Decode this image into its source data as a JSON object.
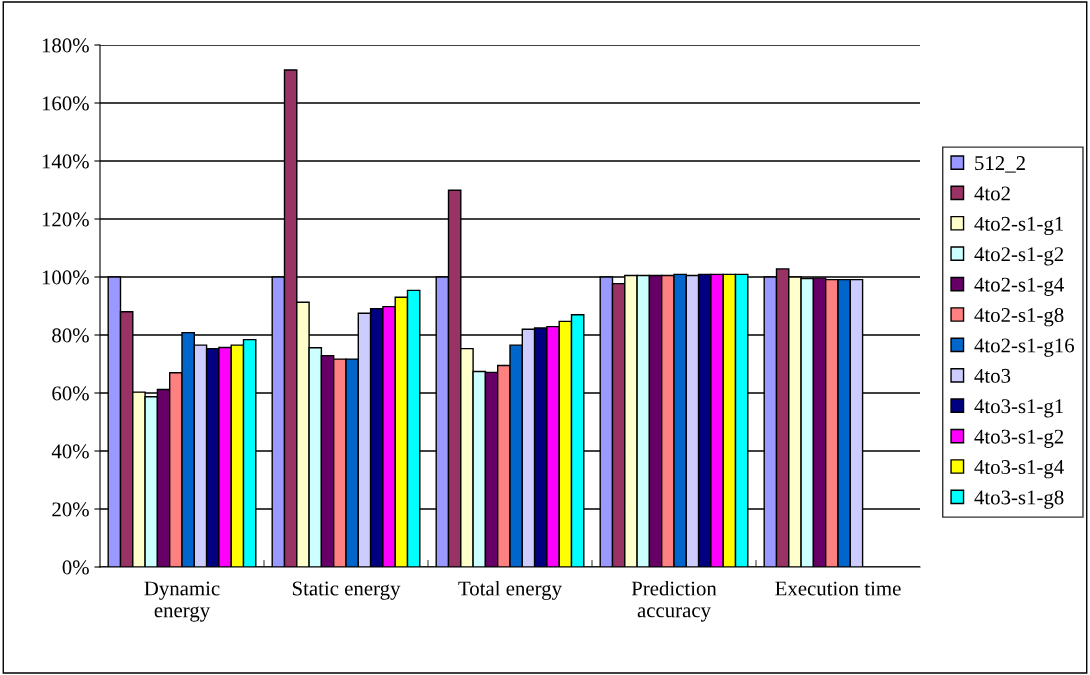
{
  "chart_data": {
    "type": "bar",
    "categories": [
      "Dynamic\nenergy",
      "Static energy",
      "Total energy",
      "Prediction\naccuracy",
      "Execution time"
    ],
    "series": [
      {
        "name": "512_2",
        "color": "#9999ff",
        "values": [
          100,
          100,
          100,
          100,
          100
        ]
      },
      {
        "name": "4to2",
        "color": "#993366",
        "values": [
          88,
          171.4,
          129.9,
          97.7,
          102.8
        ]
      },
      {
        "name": "4to2-s1-g1",
        "color": "#ffffcc",
        "values": [
          60.3,
          91.3,
          75.3,
          100.5,
          100
        ]
      },
      {
        "name": "4to2-s1-g2",
        "color": "#ccffff",
        "values": [
          58.7,
          75.6,
          67.4,
          100.5,
          99.5
        ]
      },
      {
        "name": "4to2-s1-g4",
        "color": "#660066",
        "values": [
          61.2,
          72.9,
          67.1,
          100.5,
          99.6
        ]
      },
      {
        "name": "4to2-s1-g8",
        "color": "#ff8080",
        "values": [
          67,
          71.7,
          69.5,
          100.5,
          99.1
        ]
      },
      {
        "name": "4to2-s1-g16",
        "color": "#0066cc",
        "values": [
          80.8,
          71.7,
          76.5,
          100.9,
          99.1
        ]
      },
      {
        "name": "4to3",
        "color": "#ccccff",
        "values": [
          76.5,
          87.5,
          82,
          100.5,
          99.1
        ]
      },
      {
        "name": "4to3-s1-g1",
        "color": "#000080",
        "values": [
          75.3,
          89.1,
          82.4,
          100.9,
          null
        ]
      },
      {
        "name": "4to3-s1-g2",
        "color": "#ff00ff",
        "values": [
          75.7,
          89.8,
          82.9,
          100.9,
          null
        ]
      },
      {
        "name": "4to3-s1-g4",
        "color": "#ffff00",
        "values": [
          76.5,
          93,
          84.7,
          100.9,
          null
        ]
      },
      {
        "name": "4to3-s1-g8",
        "color": "#00ffff",
        "values": [
          78.4,
          95.4,
          87,
          100.9,
          null
        ]
      }
    ],
    "ylim": [
      0,
      180
    ],
    "yticks": [
      {
        "value": 0,
        "label": "0%"
      },
      {
        "value": 20,
        "label": "20%"
      },
      {
        "value": 40,
        "label": "40%"
      },
      {
        "value": 60,
        "label": "60%"
      },
      {
        "value": 80,
        "label": "80%"
      },
      {
        "value": 100,
        "label": "100%"
      },
      {
        "value": 120,
        "label": "120%"
      },
      {
        "value": 140,
        "label": "140%"
      },
      {
        "value": 160,
        "label": "160%"
      },
      {
        "value": 180,
        "label": "180%"
      }
    ],
    "grid": "y",
    "legend": "right"
  }
}
